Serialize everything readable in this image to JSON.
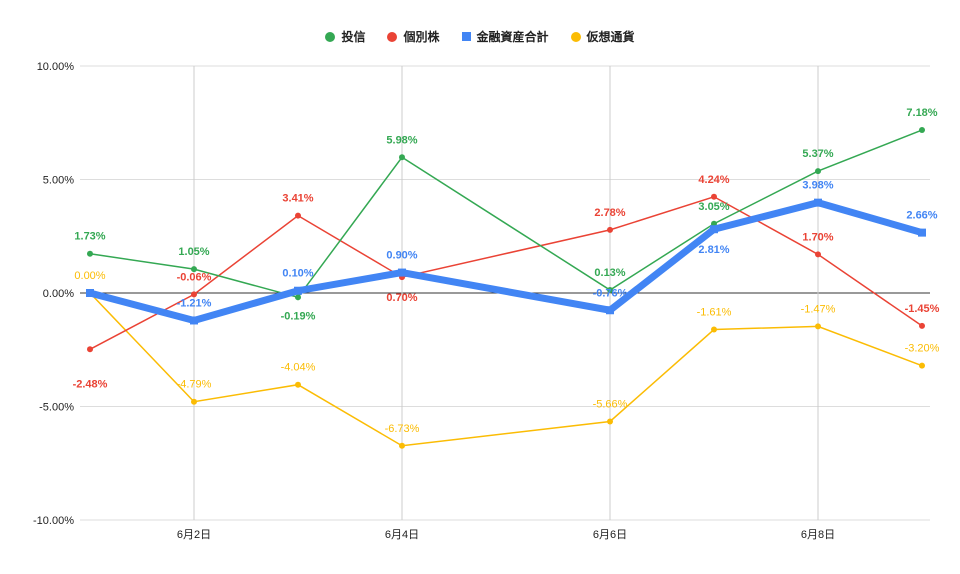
{
  "chart_data": {
    "type": "line",
    "x": [
      "6月1日",
      "6月2日",
      "6月3日",
      "6月4日",
      "6月6日",
      "6月7日",
      "6月8日",
      "6月9日"
    ],
    "x_day": [
      1,
      2,
      3,
      4,
      6,
      7,
      8,
      9
    ],
    "xticks": [
      "6月2日",
      "6月4日",
      "6月6日",
      "6月8日"
    ],
    "xtick_days": [
      2,
      4,
      6,
      8
    ],
    "yticks": [
      "10.00%",
      "5.00%",
      "0.00%",
      "-5.00%",
      "-10.00%"
    ],
    "ylim": [
      -10,
      10
    ],
    "grid": true,
    "legend_position": "top",
    "series": [
      {
        "name": "投信",
        "color": "#34a853",
        "marker": "circle",
        "values": [
          1.73,
          1.05,
          -0.19,
          5.98,
          0.13,
          3.05,
          5.37,
          7.18
        ],
        "labels": [
          "1.73%",
          "1.05%",
          "-0.19%",
          "5.98%",
          "0.13%",
          "3.05%",
          "5.37%",
          "7.18%"
        ]
      },
      {
        "name": "個別株",
        "color": "#ea4335",
        "marker": "circle",
        "values": [
          -2.48,
          -0.06,
          3.41,
          0.7,
          2.78,
          4.24,
          1.7,
          -1.45
        ],
        "labels": [
          "-2.48%",
          "-0.06%",
          "3.41%",
          "0.70%",
          "2.78%",
          "4.24%",
          "1.70%",
          "-1.45%"
        ]
      },
      {
        "name": "金融資産合計",
        "color": "#4285f4",
        "marker": "square",
        "values": [
          0.0,
          -1.21,
          0.1,
          0.9,
          -0.76,
          2.81,
          3.98,
          2.66
        ],
        "labels": [
          "",
          "-1.21%",
          "0.10%",
          "0.90%",
          "-0.76%",
          "2.81%",
          "3.98%",
          "2.66%"
        ]
      },
      {
        "name": "仮想通貨",
        "color": "#fbbc04",
        "marker": "circle",
        "values": [
          0.0,
          -4.79,
          -4.04,
          -6.73,
          -5.66,
          -1.61,
          -1.47,
          -3.2
        ],
        "labels": [
          "0.00%",
          "-4.79%",
          "-4.04%",
          "-6.73%",
          "-5.66%",
          "-1.61%",
          "-1.47%",
          "-3.20%"
        ]
      }
    ]
  }
}
